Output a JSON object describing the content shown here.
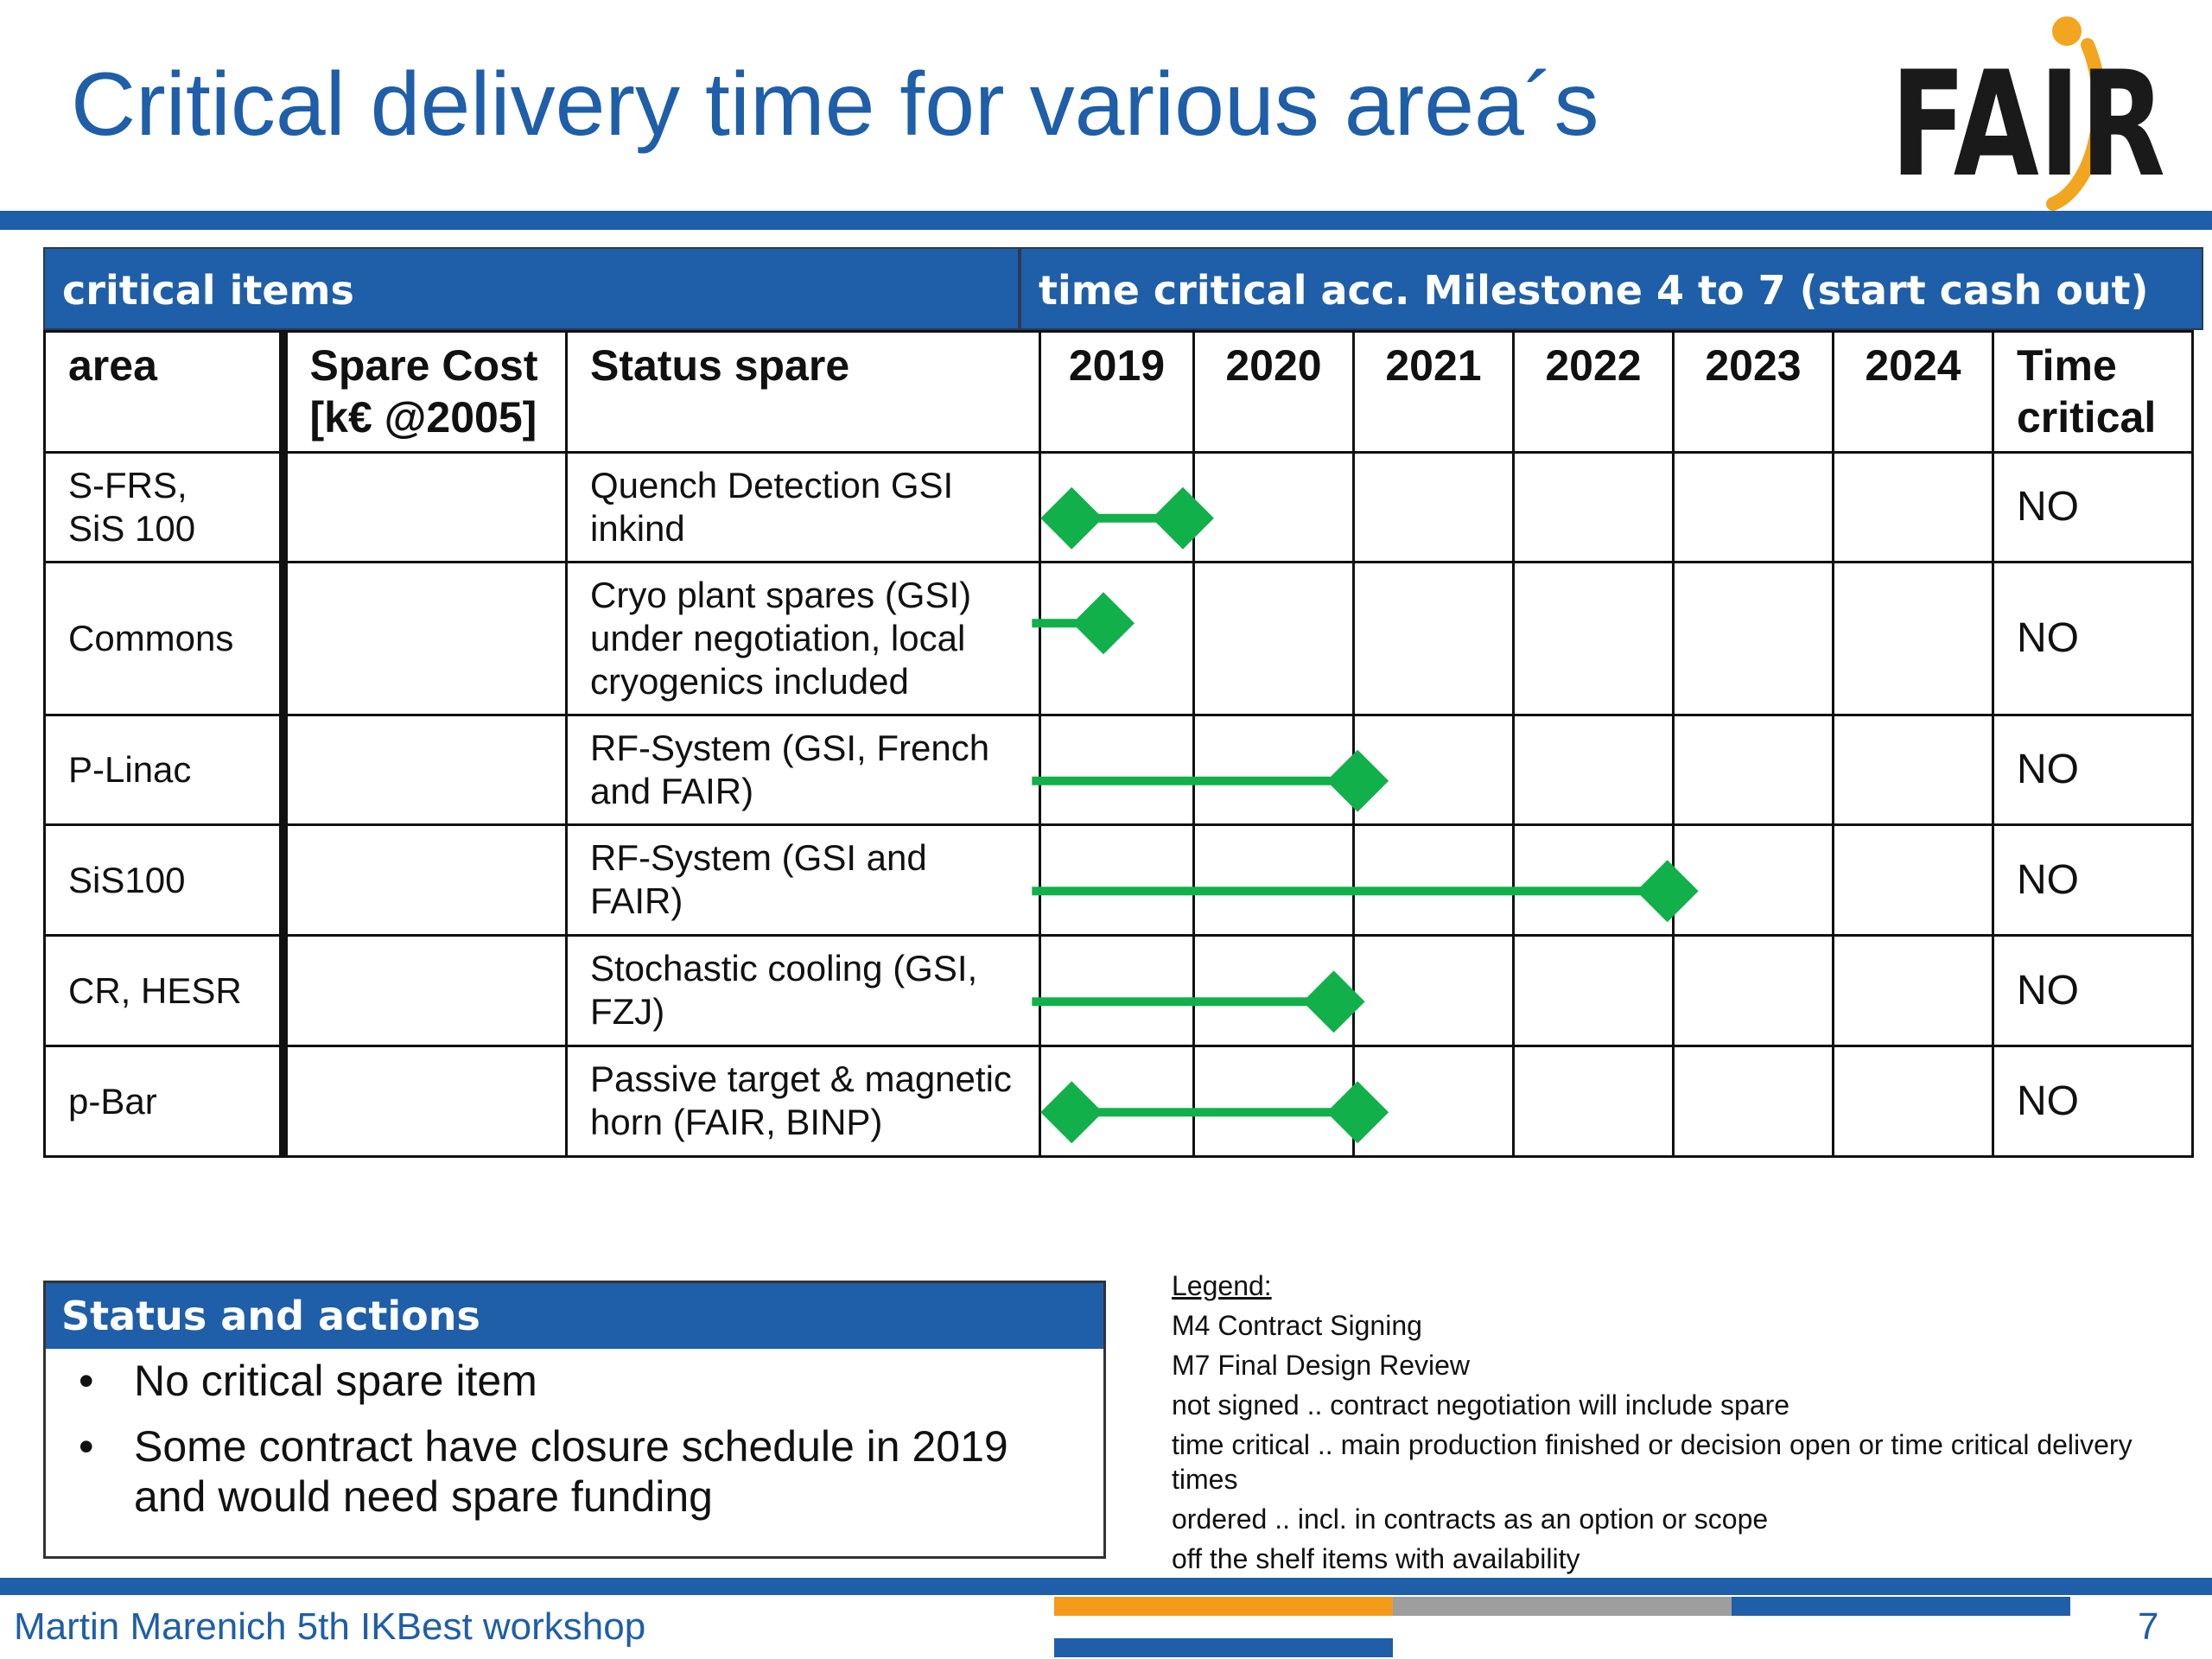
{
  "slide": {
    "title": "Critical delivery time for various area´s",
    "logo_text": "FAIR"
  },
  "table": {
    "header_left": "critical items",
    "header_right": "time critical acc. Milestone 4 to 7 (start cash out)",
    "columns": {
      "area": "area",
      "spare_cost_line1": "Spare Cost",
      "spare_cost_line2": "[k€ @2005]",
      "status": "Status spare",
      "years": [
        "2019",
        "2020",
        "2021",
        "2022",
        "2023",
        "2024"
      ],
      "time_critical_line1": "Time",
      "time_critical_line2": "critical"
    },
    "rows": [
      {
        "area_line1": "S-FRS,",
        "area_line2": "SiS 100",
        "spare_cost": "",
        "status": "Quench Detection GSI inkind",
        "time_critical": "NO",
        "bar_start_year": 2019.2,
        "bar_end_year": 2019.9,
        "start_marker": true,
        "end_marker": true
      },
      {
        "area_line1": "Commons",
        "area_line2": "",
        "spare_cost": "",
        "status": "Cryo plant spares (GSI) under negotiation, local cryogenics included",
        "time_critical": "NO",
        "bar_start_year": 2018.95,
        "bar_end_year": 2019.4,
        "start_marker": false,
        "end_marker": true
      },
      {
        "area_line1": "P-Linac",
        "area_line2": "",
        "spare_cost": "",
        "status": "RF-System (GSI, French and FAIR)",
        "time_critical": "NO",
        "bar_start_year": 2018.95,
        "bar_end_year": 2021.0,
        "start_marker": false,
        "end_marker": true
      },
      {
        "area_line1": "SiS100",
        "area_line2": "",
        "spare_cost": "",
        "status": "RF-System (GSI and FAIR)",
        "time_critical": "NO",
        "bar_start_year": 2018.95,
        "bar_end_year": 2022.95,
        "start_marker": false,
        "end_marker": true
      },
      {
        "area_line1": "CR, HESR",
        "area_line2": "",
        "spare_cost": "",
        "status": "Stochastic cooling (GSI, FZJ)",
        "time_critical": "NO",
        "bar_start_year": 2018.95,
        "bar_end_year": 2020.85,
        "start_marker": false,
        "end_marker": true
      },
      {
        "area_line1": "p-Bar",
        "area_line2": "",
        "spare_cost": "",
        "status": "Passive target & magnetic horn (FAIR, BINP)",
        "time_critical": "NO",
        "bar_start_year": 2019.2,
        "bar_end_year": 2021.0,
        "start_marker": true,
        "end_marker": true
      }
    ]
  },
  "status_actions": {
    "heading": "Status and actions",
    "bullet_symbol": "•",
    "items": [
      "No critical spare item",
      "Some contract have closure schedule in 2019 and would need spare funding"
    ]
  },
  "legend": {
    "title": "Legend:",
    "items": [
      "M4 Contract Signing",
      "M7 Final Design Review",
      "not signed .. contract negotiation will include spare",
      "time critical .. main production finished or decision open or time critical delivery times",
      "ordered .. incl. in contracts as an option or scope",
      "off the shelf items with availability"
    ]
  },
  "footer": {
    "presenter": "Martin Marenich 5th IKBest workshop",
    "page_number": "7"
  },
  "colors": {
    "brand_blue": "#1f5ea8",
    "gantt_green": "#12b04a",
    "logo_orange": "#f2a51e",
    "footer_orange": "#f49b1a",
    "footer_grey": "#9e9e9e"
  }
}
